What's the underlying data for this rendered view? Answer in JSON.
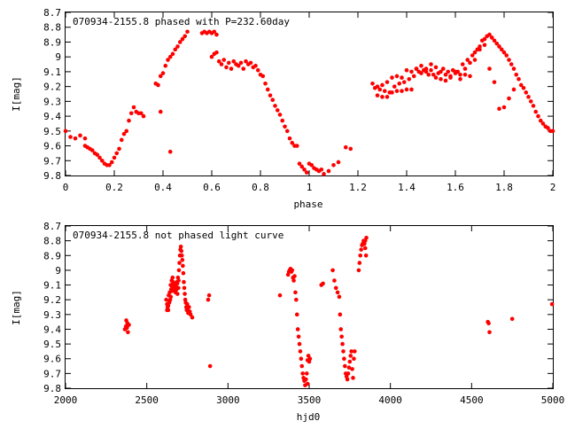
{
  "chart_data": [
    {
      "type": "scatter",
      "title": "070934-2155.8 phased with P=232.60day",
      "xlabel": "phase",
      "ylabel": "I[mag]",
      "xlim": [
        0,
        2
      ],
      "ylim": [
        9.8,
        8.7
      ],
      "y_inverted": true,
      "grid": false,
      "x_ticks": [
        "0",
        "0.2",
        "0.4",
        "0.6",
        "0.8",
        "1",
        "1.2",
        "1.4",
        "1.6",
        "1.8",
        "2"
      ],
      "y_ticks": [
        "8.7",
        "8.8",
        "8.9",
        "9",
        "9.1",
        "9.2",
        "9.3",
        "9.4",
        "9.5",
        "9.6",
        "9.7",
        "9.8"
      ],
      "marker_color": "#ff0000",
      "series": [
        {
          "x": [
            0.0,
            0.02,
            0.04,
            0.06,
            0.08,
            0.08,
            0.09,
            0.1,
            0.11,
            0.12,
            0.13,
            0.14,
            0.15,
            0.16,
            0.17,
            0.18,
            0.19,
            0.2,
            0.21,
            0.22,
            0.23,
            0.24,
            0.25,
            0.26,
            0.27,
            0.28,
            0.29,
            0.3,
            0.31,
            0.32,
            0.37,
            0.38,
            0.39,
            0.39,
            0.4,
            0.41,
            0.42,
            0.43,
            0.44,
            0.45,
            0.46,
            0.47,
            0.48,
            0.49,
            0.5,
            0.43,
            0.56,
            0.57,
            0.58,
            0.59,
            0.6,
            0.61,
            0.62,
            0.6,
            0.61,
            0.62,
            0.63,
            0.64,
            0.65,
            0.66,
            0.67,
            0.68,
            0.69,
            0.7,
            0.71,
            0.72,
            0.73,
            0.74,
            0.75,
            0.76,
            0.77,
            0.78,
            0.79,
            0.8,
            0.81,
            0.82,
            0.83,
            0.84,
            0.85,
            0.86,
            0.87,
            0.88,
            0.89,
            0.9,
            0.91,
            0.92,
            0.93,
            0.94,
            0.95,
            0.96,
            0.97,
            0.98,
            0.99,
            1.0,
            1.01,
            1.02,
            1.03,
            1.04,
            1.05,
            1.06,
            1.08,
            1.1,
            1.12,
            1.15,
            1.17,
            1.26,
            1.27,
            1.28,
            1.29,
            1.3,
            1.31,
            1.32,
            1.33,
            1.34,
            1.35,
            1.36,
            1.37,
            1.38,
            1.39,
            1.4,
            1.41,
            1.42,
            1.43,
            1.44,
            1.45,
            1.46,
            1.47,
            1.48,
            1.49,
            1.5,
            1.51,
            1.52,
            1.53,
            1.54,
            1.55,
            1.56,
            1.57,
            1.58,
            1.59,
            1.6,
            1.61,
            1.62,
            1.63,
            1.64,
            1.65,
            1.66,
            1.67,
            1.68,
            1.69,
            1.7,
            1.71,
            1.72,
            1.73,
            1.74,
            1.75,
            1.76,
            1.77,
            1.78,
            1.79,
            1.8,
            1.81,
            1.82,
            1.83,
            1.84,
            1.85,
            1.86,
            1.87,
            1.88,
            1.89,
            1.9,
            1.91,
            1.92,
            1.93,
            1.94,
            1.95,
            1.96,
            1.97,
            1.98,
            1.99,
            2.0,
            1.28,
            1.3,
            1.32,
            1.34,
            1.36,
            1.38,
            1.4,
            1.42,
            1.44,
            1.46,
            1.48,
            1.5,
            1.52,
            1.54,
            1.56,
            1.58,
            1.6,
            1.62,
            1.64,
            1.66,
            1.68,
            1.7,
            1.72,
            1.74,
            1.76,
            1.78,
            1.8,
            1.82,
            1.84
          ],
          "y": [
            9.5,
            9.54,
            9.55,
            9.53,
            9.55,
            9.6,
            9.61,
            9.62,
            9.63,
            9.65,
            9.66,
            9.68,
            9.7,
            9.72,
            9.73,
            9.73,
            9.71,
            9.68,
            9.65,
            9.62,
            9.56,
            9.52,
            9.5,
            9.43,
            9.38,
            9.34,
            9.37,
            9.38,
            9.38,
            9.4,
            9.18,
            9.19,
            9.13,
            9.37,
            9.11,
            9.06,
            9.02,
            9.0,
            8.98,
            8.95,
            8.93,
            8.9,
            8.88,
            8.86,
            8.83,
            9.64,
            8.84,
            8.83,
            8.84,
            8.83,
            8.84,
            8.83,
            8.85,
            9.0,
            8.98,
            8.97,
            9.03,
            9.05,
            9.02,
            9.07,
            9.04,
            9.08,
            9.03,
            9.05,
            9.06,
            9.04,
            9.08,
            9.03,
            9.05,
            9.04,
            9.07,
            9.06,
            9.09,
            9.12,
            9.13,
            9.18,
            9.22,
            9.26,
            9.29,
            9.33,
            9.36,
            9.39,
            9.43,
            9.47,
            9.5,
            9.55,
            9.58,
            9.6,
            9.6,
            9.72,
            9.74,
            9.76,
            9.78,
            9.72,
            9.73,
            9.75,
            9.76,
            9.77,
            9.76,
            9.79,
            9.77,
            9.73,
            9.71,
            9.61,
            9.62,
            9.18,
            9.21,
            9.2,
            9.22,
            9.19,
            9.23,
            9.17,
            9.24,
            9.14,
            9.2,
            9.13,
            9.18,
            9.14,
            9.17,
            9.09,
            9.15,
            9.1,
            9.13,
            9.08,
            9.1,
            9.11,
            9.09,
            9.08,
            9.12,
            9.09,
            9.12,
            9.14,
            9.11,
            9.15,
            9.08,
            9.16,
            9.1,
            9.14,
            9.09,
            9.11,
            9.1,
            9.12,
            9.05,
            9.08,
            9.02,
            9.04,
            8.99,
            8.97,
            8.95,
            8.93,
            8.89,
            8.88,
            8.86,
            8.85,
            8.87,
            8.89,
            8.91,
            8.93,
            8.95,
            8.97,
            8.99,
            9.02,
            9.05,
            9.08,
            9.12,
            9.15,
            9.19,
            9.21,
            9.24,
            9.27,
            9.3,
            9.33,
            9.37,
            9.4,
            9.43,
            9.45,
            9.47,
            9.48,
            9.5,
            9.5,
            9.26,
            9.27,
            9.27,
            9.24,
            9.23,
            9.23,
            9.22,
            9.22,
            9.08,
            9.06,
            9.1,
            9.05,
            9.07,
            9.1,
            9.12,
            9.13,
            9.1,
            9.15,
            9.12,
            9.13,
            9.02,
            8.95,
            8.92,
            9.08,
            9.17,
            9.35,
            9.34,
            9.28,
            9.22
          ]
        }
      ]
    },
    {
      "type": "scatter",
      "title": "070934-2155.8 not phased light curve",
      "xlabel": "hjd0",
      "ylabel": "I[mag]",
      "xlim": [
        2000,
        5000
      ],
      "ylim": [
        9.8,
        8.7
      ],
      "y_inverted": true,
      "grid": false,
      "x_ticks": [
        "2000",
        "2500",
        "3000",
        "3500",
        "4000",
        "4500",
        "5000"
      ],
      "y_ticks": [
        "8.7",
        "8.8",
        "8.9",
        "9",
        "9.1",
        "9.2",
        "9.3",
        "9.4",
        "9.5",
        "9.6",
        "9.7",
        "9.8"
      ],
      "marker_color": "#ff0000",
      "series": [
        {
          "x": [
            2365,
            2372,
            2378,
            2384,
            2390,
            2374,
            2381,
            2620,
            2625,
            2628,
            2632,
            2635,
            2638,
            2641,
            2644,
            2647,
            2650,
            2653,
            2656,
            2659,
            2662,
            2665,
            2668,
            2671,
            2674,
            2677,
            2680,
            2683,
            2686,
            2689,
            2692,
            2695,
            2698,
            2701,
            2704,
            2707,
            2710,
            2713,
            2716,
            2719,
            2722,
            2725,
            2728,
            2731,
            2734,
            2737,
            2740,
            2743,
            2746,
            2749,
            2752,
            2755,
            2760,
            2765,
            2770,
            2780,
            2625,
            2632,
            2640,
            2648,
            2656,
            2664,
            2672,
            2680,
            2688,
            2696,
            2878,
            2884,
            2890,
            3320,
            3370,
            3375,
            3380,
            3385,
            3390,
            3395,
            3400,
            3405,
            3410,
            3415,
            3420,
            3425,
            3430,
            3435,
            3440,
            3445,
            3450,
            3455,
            3460,
            3465,
            3470,
            3475,
            3480,
            3485,
            3490,
            3495,
            3500,
            3490,
            3505,
            3575,
            3585,
            3645,
            3655,
            3665,
            3675,
            3685,
            3690,
            3695,
            3700,
            3705,
            3710,
            3715,
            3720,
            3725,
            3730,
            3735,
            3740,
            3745,
            3750,
            3755,
            3760,
            3765,
            3770,
            3775,
            3780,
            3805,
            3810,
            3815,
            3820,
            3825,
            3830,
            3835,
            3840,
            3845,
            3850,
            3845,
            3852,
            4600,
            4605,
            4610,
            4750,
            4995
          ],
          "y": [
            9.4,
            9.38,
            9.39,
            9.42,
            9.37,
            9.34,
            9.36,
            9.2,
            9.23,
            9.25,
            9.27,
            9.17,
            9.22,
            9.15,
            9.2,
            9.1,
            9.13,
            9.07,
            9.11,
            9.05,
            9.08,
            9.12,
            9.09,
            9.14,
            9.11,
            9.15,
            9.1,
            9.13,
            9.08,
            9.16,
            9.05,
            9.12,
            9.0,
            8.95,
            8.9,
            8.86,
            8.84,
            8.87,
            8.9,
            8.93,
            8.97,
            9.02,
            9.08,
            9.12,
            9.16,
            9.2,
            9.22,
            9.25,
            9.27,
            9.23,
            9.26,
            9.29,
            9.25,
            9.28,
            9.3,
            9.32,
            9.27,
            9.24,
            9.21,
            9.18,
            9.14,
            9.11,
            9.1,
            9.13,
            9.09,
            9.07,
            9.2,
            9.17,
            9.65,
            9.17,
            9.03,
            9.01,
            9.0,
            8.99,
            9.01,
            9.0,
            9.05,
            9.07,
            9.04,
            9.15,
            9.2,
            9.3,
            9.4,
            9.45,
            9.5,
            9.55,
            9.6,
            9.65,
            9.7,
            9.73,
            9.75,
            9.78,
            9.74,
            9.7,
            9.61,
            9.58,
            9.62,
            9.77,
            9.6,
            9.1,
            9.09,
            9.0,
            9.07,
            9.12,
            9.15,
            9.18,
            9.3,
            9.4,
            9.45,
            9.5,
            9.55,
            9.6,
            9.65,
            9.7,
            9.72,
            9.74,
            9.7,
            9.66,
            9.62,
            9.58,
            9.55,
            9.67,
            9.73,
            9.6,
            9.55,
            9.0,
            8.95,
            8.9,
            8.86,
            8.83,
            8.82,
            8.8,
            8.82,
            8.85,
            8.9,
            8.8,
            8.78,
            9.35,
            9.36,
            9.42,
            9.33,
            9.23
          ]
        }
      ]
    }
  ]
}
